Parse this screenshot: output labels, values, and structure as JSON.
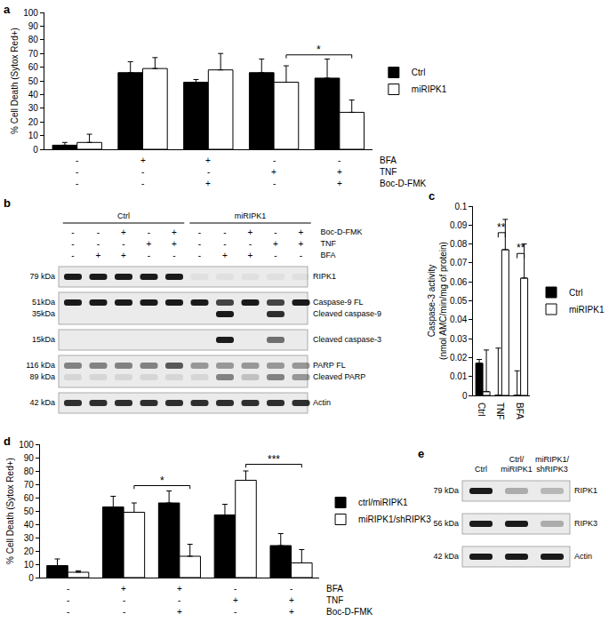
{
  "chart_data": [
    {
      "panel_label": "a",
      "type": "bar",
      "categories": [
        null,
        null,
        null,
        null,
        null
      ],
      "ylabel": "% Cell Death (Sytox Red+)",
      "ylim": [
        0,
        100
      ],
      "yticks": [
        0,
        10,
        20,
        30,
        40,
        50,
        60,
        70,
        80,
        90,
        100
      ],
      "grid": false,
      "legend": "right",
      "series": [
        {
          "name": "Ctrl",
          "color": "#000000",
          "values": [
            3,
            56,
            49,
            56,
            52
          ],
          "errors": [
            2,
            8,
            2,
            10,
            14
          ]
        },
        {
          "name": "miRIPK1",
          "color": "#ffffff",
          "values": [
            5,
            59,
            58,
            49,
            27
          ],
          "errors": [
            6,
            8,
            12,
            12,
            9
          ]
        }
      ],
      "conditions": [
        {
          "name": "BFA",
          "marks": [
            "-",
            "+",
            "+",
            "-",
            "-"
          ]
        },
        {
          "name": "TNF",
          "marks": [
            "-",
            "-",
            "-",
            "+",
            "+"
          ]
        },
        {
          "name": "Boc-D-FMK",
          "marks": [
            "-",
            "-",
            "+",
            "-",
            "+"
          ]
        }
      ],
      "significance": [
        {
          "from": {
            "category": 3,
            "series": 1
          },
          "to": {
            "category": 4,
            "series": 1
          },
          "y": 69,
          "label": "*"
        }
      ]
    },
    {
      "panel_label": "c",
      "type": "bar",
      "categories": [
        "Ctrl",
        "TNF",
        "BFA"
      ],
      "ylabel": "Caspase-3 activity\n(nmol AMC/min/mg of protein)",
      "ylim": [
        0,
        0.1
      ],
      "yticks": [
        0,
        0.01,
        0.02,
        0.03,
        0.04,
        0.05,
        0.06,
        0.07,
        0.08,
        0.09,
        0.1
      ],
      "grid": false,
      "legend": "right",
      "series": [
        {
          "name": "Ctrl",
          "color": "#000000",
          "values": [
            0.017,
            0,
            0
          ],
          "errors": [
            0.002,
            0.025,
            0.013
          ]
        },
        {
          "name": "miRIPK1",
          "color": "#ffffff",
          "values": [
            0.002,
            0.077,
            0.062
          ],
          "errors": [
            0.022,
            0.016,
            0.018
          ]
        }
      ],
      "significance": [
        {
          "from": {
            "category": 1,
            "series": 0
          },
          "to": {
            "category": 1,
            "series": 1
          },
          "y": 0.086,
          "label": "**"
        },
        {
          "from": {
            "category": 2,
            "series": 0
          },
          "to": {
            "category": 2,
            "series": 1
          },
          "y": 0.075,
          "label": "**"
        }
      ]
    },
    {
      "panel_label": "d",
      "type": "bar",
      "categories": [
        null,
        null,
        null,
        null,
        null
      ],
      "ylabel": "% Cell Death (Sytox Red+)",
      "ylim": [
        0,
        100
      ],
      "yticks": [
        0,
        10,
        20,
        30,
        40,
        50,
        60,
        70,
        80,
        90,
        100
      ],
      "grid": false,
      "legend": "right",
      "series": [
        {
          "name": "ctrl/miRIPK1",
          "color": "#000000",
          "values": [
            9,
            53,
            56,
            47,
            24
          ],
          "errors": [
            5,
            8,
            9,
            8,
            9
          ]
        },
        {
          "name": "miRIPK1/shRIPK3",
          "color": "#ffffff",
          "values": [
            4,
            49,
            16,
            73,
            11
          ],
          "errors": [
            1,
            7,
            9,
            7,
            10
          ]
        }
      ],
      "conditions": [
        {
          "name": "BFA",
          "marks": [
            "-",
            "+",
            "+",
            "-",
            "-"
          ]
        },
        {
          "name": "TNF",
          "marks": [
            "-",
            "-",
            "-",
            "+",
            "+"
          ]
        },
        {
          "name": "Boc-D-FMK",
          "marks": [
            "-",
            "-",
            "+",
            "-",
            "+"
          ]
        }
      ],
      "significance": [
        {
          "from": {
            "category": 1,
            "series": 1
          },
          "to": {
            "category": 2,
            "series": 1
          },
          "y": 69,
          "label": "*"
        },
        {
          "from": {
            "category": 3,
            "series": 1
          },
          "to": {
            "category": 4,
            "series": 1
          },
          "y": 85,
          "label": "***"
        }
      ]
    }
  ],
  "blots": [
    {
      "panel_label": "b",
      "groups": [
        {
          "label": "Ctrl",
          "from": 0,
          "to": 4
        },
        {
          "label": "miRIPK1",
          "from": 5,
          "to": 9
        }
      ],
      "conditions": [
        {
          "name": "Boc-D-FMK",
          "marks": [
            "-",
            "-",
            "+",
            "-",
            "+",
            "-",
            "-",
            "+",
            "-",
            "+"
          ]
        },
        {
          "name": "TNF",
          "marks": [
            "-",
            "-",
            "-",
            "+",
            "+",
            "-",
            "-",
            "-",
            "+",
            "+"
          ]
        },
        {
          "name": "BFA",
          "marks": [
            "-",
            "+",
            "+",
            "-",
            "-",
            "-",
            "+",
            "+",
            "-",
            "-"
          ]
        }
      ],
      "rows": [
        {
          "bands": [
            {
              "kda": "79 kDa",
              "name": "RIPK1",
              "intensity": [
                1,
                1,
                1,
                1,
                1,
                0.05,
                0.05,
                0.05,
                0.05,
                0.05
              ]
            }
          ]
        },
        {
          "bands": [
            {
              "kda": "51kDa",
              "name": "Caspase-9 FL",
              "intensity": [
                1,
                1,
                1,
                1,
                1,
                1,
                0.8,
                1,
                0.8,
                1
              ]
            },
            {
              "kda": "35kDa",
              "name": "Cleaved caspase-9",
              "intensity": [
                0,
                0,
                0,
                0,
                0,
                0,
                1,
                0,
                0.9,
                0
              ]
            }
          ]
        },
        {
          "bands": [
            {
              "kda": "15kDa",
              "name": "Cleaved caspase-3",
              "intensity": [
                0,
                0,
                0,
                0,
                0,
                0,
                1,
                0,
                0.6,
                0
              ]
            }
          ]
        },
        {
          "bands": [
            {
              "kda": "116 kDa",
              "name": "PARP FL",
              "intensity": [
                0.5,
                0.5,
                0.5,
                0.5,
                0.7,
                0.4,
                0.4,
                0.4,
                0.4,
                0.4
              ]
            },
            {
              "kda": "89 kDa",
              "name": "Cleaved PARP",
              "intensity": [
                0.1,
                0.1,
                0.1,
                0.1,
                0.1,
                0.1,
                0.5,
                0.2,
                0.5,
                0.4
              ]
            }
          ]
        },
        {
          "bands": [
            {
              "kda": "42 kDa",
              "name": "Actin",
              "intensity": [
                0.9,
                0.9,
                0.9,
                0.9,
                0.9,
                0.9,
                0.9,
                0.9,
                0.9,
                0.9
              ]
            }
          ]
        }
      ]
    },
    {
      "panel_label": "e",
      "groups": [
        {
          "label": "Ctrl",
          "from": 0,
          "to": 0
        },
        {
          "label": "Ctrl/\nmiRIPK1",
          "from": 1,
          "to": 1
        },
        {
          "label": "miRIPK1/\nshRIPK3",
          "from": 2,
          "to": 2
        }
      ],
      "conditions": [],
      "rows": [
        {
          "bands": [
            {
              "kda": "79 kDa",
              "name": "RIPK1",
              "intensity": [
                1,
                0.3,
                0.25
              ]
            }
          ]
        },
        {
          "bands": [
            {
              "kda": "56 kDa",
              "name": "RIPK3",
              "intensity": [
                1,
                1,
                0.3
              ]
            }
          ]
        },
        {
          "bands": [
            {
              "kda": "42 kDa",
              "name": "Actin",
              "intensity": [
                1,
                1,
                1
              ]
            }
          ]
        }
      ]
    }
  ]
}
